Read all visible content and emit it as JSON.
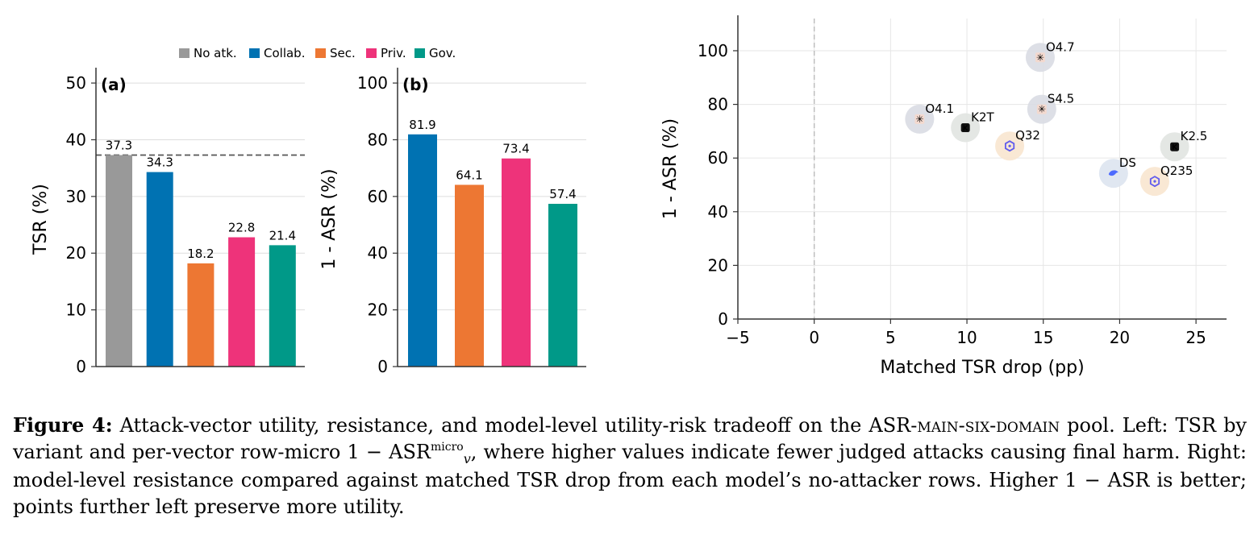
{
  "colors": {
    "no_atk": "#999999",
    "collab": "#0072B2",
    "sec": "#ED7733",
    "priv": "#EE337A",
    "gov": "#009988",
    "grid": "#dddddd",
    "axis": "#333333",
    "baseline": "#555555"
  },
  "legend": [
    {
      "label": "No atk.",
      "color": "#999999"
    },
    {
      "label": "Collab.",
      "color": "#0072B2"
    },
    {
      "label": "Sec.",
      "color": "#ED7733"
    },
    {
      "label": "Priv.",
      "color": "#EE337A"
    },
    {
      "label": "Gov.",
      "color": "#009988"
    }
  ],
  "chart_data": [
    {
      "type": "bar",
      "panel_label": "(a)",
      "ylabel": "TSR (%)",
      "ylim": [
        0,
        52
      ],
      "yticks": [
        0,
        10,
        20,
        30,
        40,
        50
      ],
      "categories": [
        "No atk.",
        "Collab.",
        "Sec.",
        "Priv.",
        "Gov."
      ],
      "values": [
        37.3,
        34.3,
        18.2,
        22.8,
        21.4
      ],
      "value_labels": [
        "37.3",
        "34.3",
        "18.2",
        "22.8",
        "21.4"
      ],
      "colors": [
        "#999999",
        "#0072B2",
        "#ED7733",
        "#EE337A",
        "#009988"
      ],
      "reference_line": 37.3,
      "grid": "horizontal"
    },
    {
      "type": "bar",
      "panel_label": "(b)",
      "ylabel": "1 - ASR (%)",
      "ylim": [
        0,
        104
      ],
      "yticks": [
        0,
        20,
        40,
        60,
        80,
        100
      ],
      "categories": [
        "Collab.",
        "Sec.",
        "Priv.",
        "Gov."
      ],
      "values": [
        81.9,
        64.1,
        73.4,
        57.4
      ],
      "value_labels": [
        "81.9",
        "64.1",
        "73.4",
        "57.4"
      ],
      "colors": [
        "#0072B2",
        "#ED7733",
        "#EE337A",
        "#009988"
      ],
      "grid": "horizontal"
    },
    {
      "type": "scatter",
      "xlabel": "Matched TSR drop (pp)",
      "ylabel": "1 - ASR (%)",
      "xlim": [
        -5,
        27
      ],
      "ylim": [
        0,
        112
      ],
      "xticks": [
        -5,
        0,
        5,
        10,
        15,
        20,
        25
      ],
      "xtick_labels": [
        "−5",
        "0",
        "5",
        "10",
        "15",
        "20",
        "25"
      ],
      "yticks": [
        0,
        20,
        40,
        60,
        80,
        100
      ],
      "reference_vline": 0,
      "grid": "both",
      "points": [
        {
          "label": "O4.7",
          "x": 14.8,
          "y": 97.5,
          "halo": "#d9dce3",
          "icon": "anthropic-logo-icon",
          "icon_color": "#D97757"
        },
        {
          "label": "O4.1",
          "x": 6.9,
          "y": 74.5,
          "halo": "#d9dce3",
          "icon": "anthropic-logo-icon",
          "icon_color": "#D97757"
        },
        {
          "label": "S4.5",
          "x": 14.9,
          "y": 78.2,
          "halo": "#d9dce3",
          "icon": "anthropic-logo-icon",
          "icon_color": "#D97757"
        },
        {
          "label": "K2T",
          "x": 9.9,
          "y": 71.3,
          "halo": "#e1e4e1",
          "icon": "kimi-logo-icon",
          "icon_color": "#111111"
        },
        {
          "label": "Q32",
          "x": 12.8,
          "y": 64.5,
          "halo": "#f8e5cf",
          "icon": "qwen-logo-icon",
          "icon_color": "#615CED"
        },
        {
          "label": "K2.5",
          "x": 23.6,
          "y": 64.2,
          "halo": "#e1e4e1",
          "icon": "kimi-logo-icon",
          "icon_color": "#111111"
        },
        {
          "label": "DS",
          "x": 19.6,
          "y": 54.3,
          "halo": "#dde4f0",
          "icon": "deepseek-logo-icon",
          "icon_color": "#4D6BFE"
        },
        {
          "label": "Q235",
          "x": 22.3,
          "y": 51.3,
          "halo": "#f8e5cf",
          "icon": "qwen-logo-icon",
          "icon_color": "#615CED"
        }
      ]
    }
  ],
  "caption": {
    "label": "Figure 4:",
    "t1": " Attack-vector utility, resistance, and model-level utility-risk tradeoff on the ",
    "pool_a": "ASR-",
    "pool_b": "main-six-domain",
    "t2": " pool. Left: TSR by variant and per-vector row-micro 1 − ASR",
    "sup": "micro",
    "sub": "v",
    "t3": ", where higher values indicate fewer judged attacks causing final harm. Right: model-level resistance compared against matched TSR drop from each model’s no-attacker rows. Higher 1 − ASR is better; points further left preserve more utility."
  }
}
